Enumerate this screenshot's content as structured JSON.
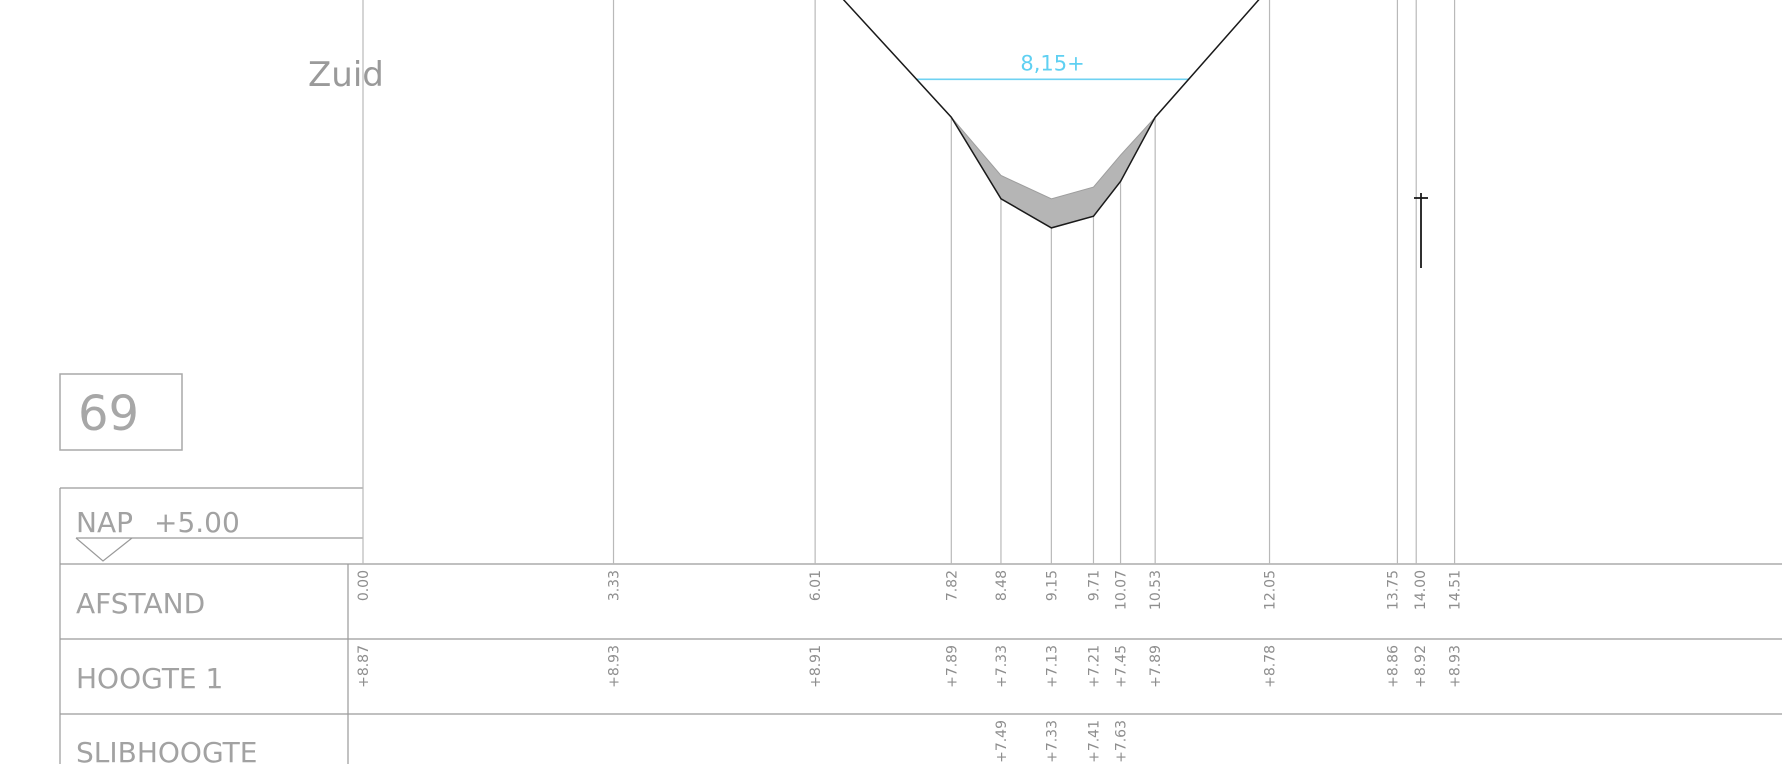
{
  "drawing": {
    "title": "Zuid",
    "section_number": "69",
    "reference_level": {
      "label": "NAP",
      "value": "+5.00",
      "value_num": 5.0
    },
    "table_rows": {
      "afstand": "AFSTAND",
      "hoogte": "HOOGTE 1",
      "slib": "SLIBHOOGTE"
    },
    "water_level": {
      "label": "8,15+",
      "value": 8.15
    }
  },
  "chart_data": {
    "type": "line",
    "title": "Zuid",
    "xlabel": "",
    "ylabel": "",
    "xlim": [
      0,
      16.1
    ],
    "ylim": [
      5.0,
      9.6
    ],
    "grid": false,
    "series": [
      {
        "key": "hoogte",
        "points": [
          {
            "x": 0.0,
            "y": 8.87,
            "xl": "0.00",
            "yl": "+8.87"
          },
          {
            "x": 3.33,
            "y": 8.93,
            "xl": "3.33",
            "yl": "+8.93"
          },
          {
            "x": 6.01,
            "y": 8.91,
            "xl": "6.01",
            "yl": "+8.91"
          },
          {
            "x": 7.82,
            "y": 7.89,
            "xl": "7.82",
            "yl": "+7.89"
          },
          {
            "x": 8.48,
            "y": 7.33,
            "xl": "8.48",
            "yl": "+7.33"
          },
          {
            "x": 9.15,
            "y": 7.13,
            "xl": "9.15",
            "yl": "+7.13"
          },
          {
            "x": 9.71,
            "y": 7.21,
            "xl": "9.71",
            "yl": "+7.21"
          },
          {
            "x": 10.07,
            "y": 7.45,
            "xl": "10.07",
            "yl": "+7.45"
          },
          {
            "x": 10.53,
            "y": 7.89,
            "xl": "10.53",
            "yl": "+7.89"
          },
          {
            "x": 12.05,
            "y": 8.78,
            "xl": "12.05",
            "yl": "+8.78"
          },
          {
            "x": 13.75,
            "y": 8.86,
            "xl": "13.75",
            "yl": "+8.86"
          },
          {
            "x": 14.0,
            "y": 8.92,
            "xl": "14.00",
            "yl": "+8.92"
          },
          {
            "x": 14.51,
            "y": 8.93,
            "xl": "14.51",
            "yl": "+8.93"
          }
        ]
      },
      {
        "key": "slib",
        "points": [
          {
            "x": 8.48,
            "y": 7.49,
            "yl": "+7.49"
          },
          {
            "x": 9.15,
            "y": 7.33,
            "yl": "+7.33"
          },
          {
            "x": 9.71,
            "y": 7.41,
            "yl": "+7.41"
          },
          {
            "x": 10.07,
            "y": 7.63,
            "yl": "+7.63"
          }
        ]
      }
    ]
  }
}
